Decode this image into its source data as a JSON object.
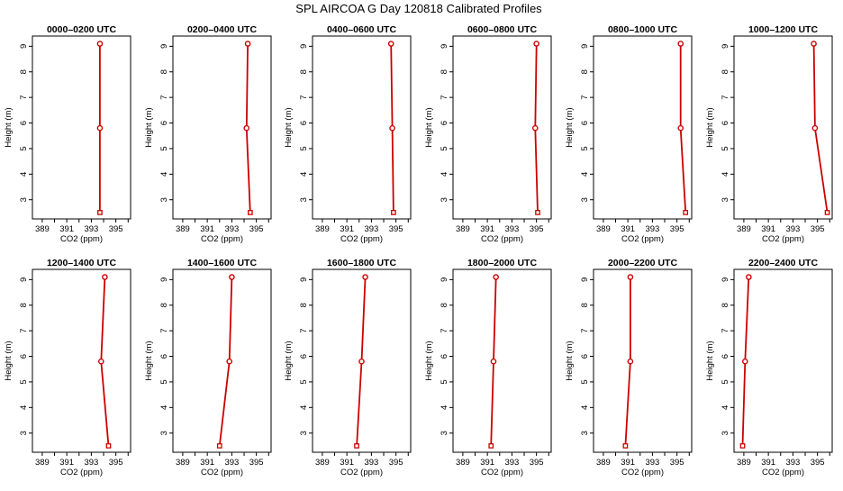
{
  "title": "SPL AIRCOA G  Day 120818  Calibrated Profiles",
  "colors": {
    "series": "#cc0000",
    "axes": "#000000",
    "background": "#ffffff"
  },
  "chart_data": [
    {
      "type": "line",
      "title": "0000–0200 UTC",
      "xlabel": "CO2 (ppm)",
      "ylabel": "Height (m)",
      "xlim": [
        388.2,
        396.2
      ],
      "ylim": [
        2.25,
        9.4
      ],
      "xticks": [
        389,
        390,
        391,
        392,
        393,
        394,
        395,
        396
      ],
      "xtick_labels": [
        "389",
        "",
        "391",
        "",
        "393",
        "",
        "395",
        ""
      ],
      "yticks": [
        3,
        4,
        5,
        6,
        7,
        8,
        9
      ],
      "series": [
        {
          "x": [
            393.7,
            393.7,
            393.7
          ],
          "y": [
            2.5,
            5.8,
            9.1
          ]
        }
      ]
    },
    {
      "type": "line",
      "title": "0200–0400 UTC",
      "xlabel": "CO2 (ppm)",
      "ylabel": "Height (m)",
      "xlim": [
        388.2,
        396.2
      ],
      "ylim": [
        2.25,
        9.4
      ],
      "xticks": [
        389,
        390,
        391,
        392,
        393,
        394,
        395,
        396
      ],
      "xtick_labels": [
        "389",
        "",
        "391",
        "",
        "393",
        "",
        "395",
        ""
      ],
      "yticks": [
        3,
        4,
        5,
        6,
        7,
        8,
        9
      ],
      "series": [
        {
          "x": [
            394.5,
            394.2,
            394.3
          ],
          "y": [
            2.5,
            5.8,
            9.1
          ]
        }
      ]
    },
    {
      "type": "line",
      "title": "0400–0600 UTC",
      "xlabel": "CO2 (ppm)",
      "ylabel": "Height (m)",
      "xlim": [
        388.2,
        396.2
      ],
      "ylim": [
        2.25,
        9.4
      ],
      "xticks": [
        389,
        390,
        391,
        392,
        393,
        394,
        395,
        396
      ],
      "xtick_labels": [
        "389",
        "",
        "391",
        "",
        "393",
        "",
        "395",
        ""
      ],
      "yticks": [
        3,
        4,
        5,
        6,
        7,
        8,
        9
      ],
      "series": [
        {
          "x": [
            394.8,
            394.7,
            394.6
          ],
          "y": [
            2.5,
            5.8,
            9.1
          ]
        }
      ]
    },
    {
      "type": "line",
      "title": "0600–0800 UTC",
      "xlabel": "CO2 (ppm)",
      "ylabel": "Height (m)",
      "xlim": [
        388.2,
        396.2
      ],
      "ylim": [
        2.25,
        9.4
      ],
      "xticks": [
        389,
        390,
        391,
        392,
        393,
        394,
        395,
        396
      ],
      "xtick_labels": [
        "389",
        "",
        "391",
        "",
        "393",
        "",
        "395",
        ""
      ],
      "yticks": [
        3,
        4,
        5,
        6,
        7,
        8,
        9
      ],
      "series": [
        {
          "x": [
            395.1,
            394.9,
            395.0
          ],
          "y": [
            2.5,
            5.8,
            9.1
          ]
        }
      ]
    },
    {
      "type": "line",
      "title": "0800–1000 UTC",
      "xlabel": "CO2 (ppm)",
      "ylabel": "Height (m)",
      "xlim": [
        388.2,
        396.2
      ],
      "ylim": [
        2.25,
        9.4
      ],
      "xticks": [
        389,
        390,
        391,
        392,
        393,
        394,
        395,
        396
      ],
      "xtick_labels": [
        "389",
        "",
        "391",
        "",
        "393",
        "",
        "395",
        ""
      ],
      "yticks": [
        3,
        4,
        5,
        6,
        7,
        8,
        9
      ],
      "series": [
        {
          "x": [
            395.7,
            395.3,
            395.3
          ],
          "y": [
            2.5,
            5.8,
            9.1
          ]
        }
      ]
    },
    {
      "type": "line",
      "title": "1000–1200 UTC",
      "xlabel": "CO2 (ppm)",
      "ylabel": "Height (m)",
      "xlim": [
        388.2,
        396.2
      ],
      "ylim": [
        2.25,
        9.4
      ],
      "xticks": [
        389,
        390,
        391,
        392,
        393,
        394,
        395,
        396
      ],
      "xtick_labels": [
        "389",
        "",
        "391",
        "",
        "393",
        "",
        "395",
        ""
      ],
      "yticks": [
        3,
        4,
        5,
        6,
        7,
        8,
        9
      ],
      "series": [
        {
          "x": [
            395.8,
            394.8,
            394.7
          ],
          "y": [
            2.5,
            5.8,
            9.1
          ]
        }
      ]
    },
    {
      "type": "line",
      "title": "1200–1400 UTC",
      "xlabel": "CO2 (ppm)",
      "ylabel": "Height (m)",
      "xlim": [
        388.2,
        396.2
      ],
      "ylim": [
        2.25,
        9.4
      ],
      "xticks": [
        389,
        390,
        391,
        392,
        393,
        394,
        395,
        396
      ],
      "xtick_labels": [
        "389",
        "",
        "391",
        "",
        "393",
        "",
        "395",
        ""
      ],
      "yticks": [
        3,
        4,
        5,
        6,
        7,
        8,
        9
      ],
      "series": [
        {
          "x": [
            394.4,
            393.8,
            394.1
          ],
          "y": [
            2.5,
            5.8,
            9.1
          ]
        }
      ]
    },
    {
      "type": "line",
      "title": "1400–1600 UTC",
      "xlabel": "CO2 (ppm)",
      "ylabel": "Height (m)",
      "xlim": [
        388.2,
        396.2
      ],
      "ylim": [
        2.25,
        9.4
      ],
      "xticks": [
        389,
        390,
        391,
        392,
        393,
        394,
        395,
        396
      ],
      "xtick_labels": [
        "389",
        "",
        "391",
        "",
        "393",
        "",
        "395",
        ""
      ],
      "yticks": [
        3,
        4,
        5,
        6,
        7,
        8,
        9
      ],
      "series": [
        {
          "x": [
            392.0,
            392.8,
            393.0
          ],
          "y": [
            2.5,
            5.8,
            9.1
          ]
        }
      ]
    },
    {
      "type": "line",
      "title": "1600–1800 UTC",
      "xlabel": "CO2 (ppm)",
      "ylabel": "Height (m)",
      "xlim": [
        388.2,
        396.2
      ],
      "ylim": [
        2.25,
        9.4
      ],
      "xticks": [
        389,
        390,
        391,
        392,
        393,
        394,
        395,
        396
      ],
      "xtick_labels": [
        "389",
        "",
        "391",
        "",
        "393",
        "",
        "395",
        ""
      ],
      "yticks": [
        3,
        4,
        5,
        6,
        7,
        8,
        9
      ],
      "series": [
        {
          "x": [
            391.8,
            392.2,
            392.5
          ],
          "y": [
            2.5,
            5.8,
            9.1
          ]
        }
      ]
    },
    {
      "type": "line",
      "title": "1800–2000 UTC",
      "xlabel": "CO2 (ppm)",
      "ylabel": "Height (m)",
      "xlim": [
        388.2,
        396.2
      ],
      "ylim": [
        2.25,
        9.4
      ],
      "xticks": [
        389,
        390,
        391,
        392,
        393,
        394,
        395,
        396
      ],
      "xtick_labels": [
        "389",
        "",
        "391",
        "",
        "393",
        "",
        "395",
        ""
      ],
      "yticks": [
        3,
        4,
        5,
        6,
        7,
        8,
        9
      ],
      "series": [
        {
          "x": [
            391.3,
            391.5,
            391.7
          ],
          "y": [
            2.5,
            5.8,
            9.1
          ]
        }
      ]
    },
    {
      "type": "line",
      "title": "2000–2200 UTC",
      "xlabel": "CO2 (ppm)",
      "ylabel": "Height (m)",
      "xlim": [
        388.2,
        396.2
      ],
      "ylim": [
        2.25,
        9.4
      ],
      "xticks": [
        389,
        390,
        391,
        392,
        393,
        394,
        395,
        396
      ],
      "xtick_labels": [
        "389",
        "",
        "391",
        "",
        "393",
        "",
        "395",
        ""
      ],
      "yticks": [
        3,
        4,
        5,
        6,
        7,
        8,
        9
      ],
      "series": [
        {
          "x": [
            390.8,
            391.2,
            391.2
          ],
          "y": [
            2.5,
            5.8,
            9.1
          ]
        }
      ]
    },
    {
      "type": "line",
      "title": "2200–2400 UTC",
      "xlabel": "CO2 (ppm)",
      "ylabel": "Height (m)",
      "xlim": [
        388.2,
        396.2
      ],
      "ylim": [
        2.25,
        9.4
      ],
      "xticks": [
        389,
        390,
        391,
        392,
        393,
        394,
        395,
        396
      ],
      "xtick_labels": [
        "389",
        "",
        "391",
        "",
        "393",
        "",
        "395",
        ""
      ],
      "yticks": [
        3,
        4,
        5,
        6,
        7,
        8,
        9
      ],
      "series": [
        {
          "x": [
            388.9,
            389.1,
            389.4
          ],
          "y": [
            2.5,
            5.8,
            9.1
          ]
        }
      ]
    }
  ]
}
